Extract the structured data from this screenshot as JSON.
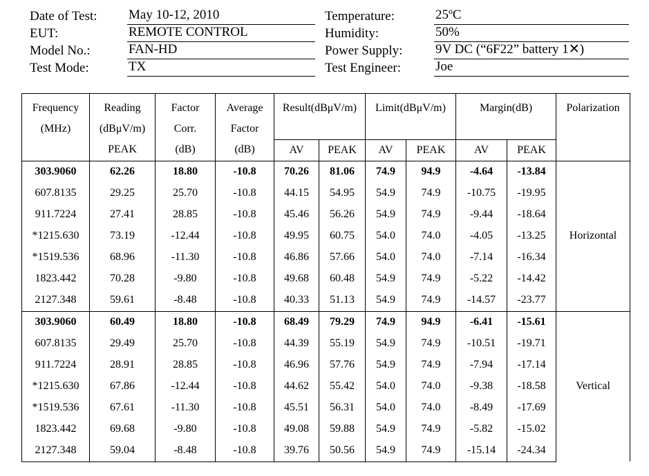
{
  "header": {
    "date_label": "Date of Test:",
    "date_value": "May 10-12, 2010",
    "eut_label": "EUT:",
    "eut_value": "REMOTE CONTROL",
    "model_label": "Model No.:",
    "model_value": "FAN-HD",
    "mode_label": "Test Mode:",
    "mode_value": "TX",
    "temp_label": "Temperature:",
    "temp_value": "25ºC",
    "hum_label": "Humidity:",
    "hum_value": "50%",
    "power_label": "Power Supply:",
    "power_value": "9V DC (“6F22” battery 1✕)",
    "eng_label": "Test Engineer:",
    "eng_value": "Joe"
  },
  "table": {
    "head": {
      "freq_1": "Frequency",
      "freq_2": "(MHz)",
      "reading_1": "Reading",
      "reading_2": "(dBμV/m)",
      "reading_3": "PEAK",
      "factor_1": "Factor",
      "factor_2": "Corr.",
      "factor_3": "(dB)",
      "avgf_1": "Average",
      "avgf_2": "Factor",
      "avgf_3": "(dB)",
      "result": "Result(dBμV/m)",
      "limit": "Limit(dBμV/m)",
      "margin": "Margin(dB)",
      "polarization": "Polarization",
      "av": "AV",
      "peak": "PEAK"
    },
    "groups": [
      {
        "polarization": "Horizontal",
        "rows": [
          [
            "303.9060",
            "62.26",
            "18.80",
            "-10.8",
            "70.26",
            "81.06",
            "74.9",
            "94.9",
            "-4.64",
            "-13.84"
          ],
          [
            "607.8135",
            "29.25",
            "25.70",
            "-10.8",
            "44.15",
            "54.95",
            "54.9",
            "74.9",
            "-10.75",
            "-19.95"
          ],
          [
            "911.7224",
            "27.41",
            "28.85",
            "-10.8",
            "45.46",
            "56.26",
            "54.9",
            "74.9",
            "-9.44",
            "-18.64"
          ],
          [
            "*1215.630",
            "73.19",
            "-12.44",
            "-10.8",
            "49.95",
            "60.75",
            "54.0",
            "74.0",
            "-4.05",
            "-13.25"
          ],
          [
            "*1519.536",
            "68.96",
            "-11.30",
            "-10.8",
            "46.86",
            "57.66",
            "54.0",
            "74.0",
            "-7.14",
            "-16.34"
          ],
          [
            "1823.442",
            "70.28",
            "-9.80",
            "-10.8",
            "49.68",
            "60.48",
            "54.9",
            "74.9",
            "-5.22",
            "-14.42"
          ],
          [
            "2127.348",
            "59.61",
            "-8.48",
            "-10.8",
            "40.33",
            "51.13",
            "54.9",
            "74.9",
            "-14.57",
            "-23.77"
          ]
        ]
      },
      {
        "polarization": "Vertical",
        "rows": [
          [
            "303.9060",
            "60.49",
            "18.80",
            "-10.8",
            "68.49",
            "79.29",
            "74.9",
            "94.9",
            "-6.41",
            "-15.61"
          ],
          [
            "607.8135",
            "29.49",
            "25.70",
            "-10.8",
            "44.39",
            "55.19",
            "54.9",
            "74.9",
            "-10.51",
            "-19.71"
          ],
          [
            "911.7224",
            "28.91",
            "28.85",
            "-10.8",
            "46.96",
            "57.76",
            "54.9",
            "74.9",
            "-7.94",
            "-17.14"
          ],
          [
            "*1215.630",
            "67.86",
            "-12.44",
            "-10.8",
            "44.62",
            "55.42",
            "54.0",
            "74.0",
            "-9.38",
            "-18.58"
          ],
          [
            "*1519.536",
            "67.61",
            "-11.30",
            "-10.8",
            "45.51",
            "56.31",
            "54.0",
            "74.0",
            "-8.49",
            "-17.69"
          ],
          [
            "1823.442",
            "69.68",
            "-9.80",
            "-10.8",
            "49.08",
            "59.88",
            "54.9",
            "74.9",
            "-5.82",
            "-15.02"
          ],
          [
            "2127.348",
            "59.04",
            "-8.48",
            "-10.8",
            "39.76",
            "50.56",
            "54.9",
            "74.9",
            "-15.14",
            "-24.34"
          ]
        ]
      }
    ]
  }
}
